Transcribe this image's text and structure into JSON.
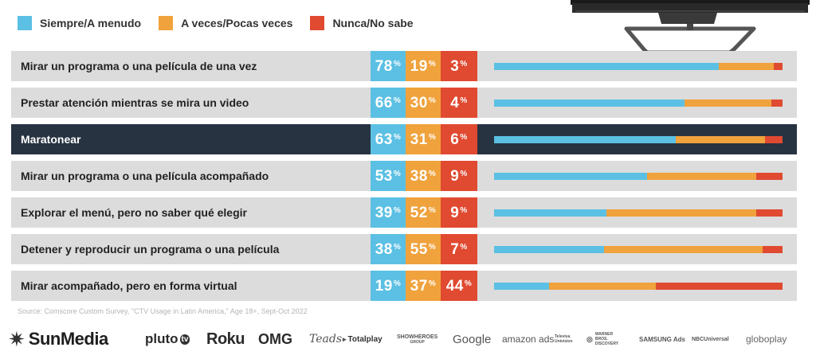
{
  "legend": [
    {
      "label": "Siempre/A menudo",
      "color": "#5bc0e3"
    },
    {
      "label": "A veces/Pocas veces",
      "color": "#f0a23c"
    },
    {
      "label": "Nunca/No sabe",
      "color": "#e04a31"
    }
  ],
  "chart_data": {
    "type": "bar",
    "stacked": true,
    "orientation": "horizontal",
    "categories": [
      "Mirar un programa o una película de una vez",
      "Prestar atención mientras se mira un video",
      "Maratonear",
      "Mirar un programa o una película acompañado",
      "Explorar el menú, pero no saber qué elegir",
      "Detener y reproducir un programa o una película",
      "Mirar acompañado, pero en forma virtual"
    ],
    "highlighted_category": "Maratonear",
    "percent_symbol": "%",
    "series": [
      {
        "name": "Siempre/A menudo",
        "color": "#5bc0e3",
        "values": [
          78,
          66,
          63,
          53,
          39,
          38,
          19
        ]
      },
      {
        "name": "A veces/Pocas veces",
        "color": "#f0a23c",
        "values": [
          19,
          30,
          31,
          38,
          52,
          55,
          37
        ]
      },
      {
        "name": "Nunca/No sabe",
        "color": "#e04a31",
        "values": [
          3,
          4,
          6,
          9,
          9,
          7,
          44
        ]
      }
    ]
  },
  "source": "Source: Comscore Custom Survey, \"CTV Usage in Latin America,\" Age 18+, Sept-Oct 2022",
  "logos": {
    "sunmedia": "SunMedia",
    "pluto": "pluto",
    "pluto_tv": "tv",
    "roku": "Roku",
    "omg": "OMG",
    "teads": "Teads",
    "totalplay": "Totalplay",
    "showheroes": "SHOWHEROES",
    "showheroes_sub": "GROUP",
    "google": "Google",
    "amazonads": "amazon ads",
    "televisa": "Televisa Univision",
    "wbd": "WARNER BROS. DISCOVERY",
    "samsung": "SAMSUNG Ads",
    "nbcu": "NBCUniversal",
    "globoplay": "globoplay"
  }
}
